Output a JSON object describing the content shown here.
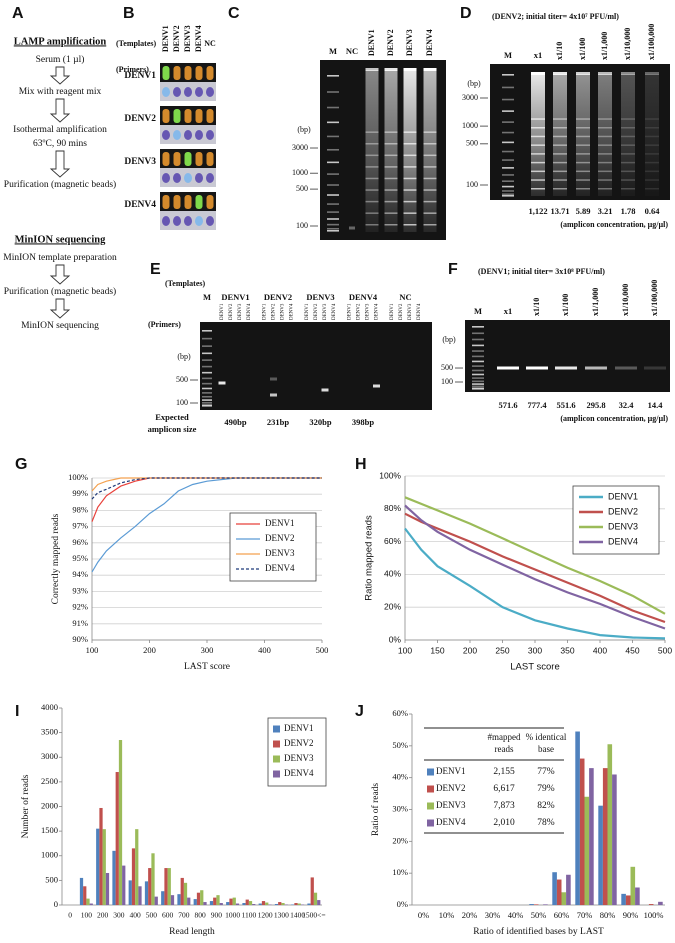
{
  "panels": {
    "A": {
      "label": "A",
      "steps": [
        {
          "lines": [
            "LAMP amplification"
          ],
          "header": true
        },
        {
          "lines": [
            "Serum (1 µl)"
          ]
        },
        {
          "lines": [
            "Mix with reagent mix"
          ]
        },
        {
          "lines": [
            "Isothermal  amplification",
            "63ºC, 90 mins"
          ]
        },
        {
          "lines": [
            "Purification  (magnetic beads)"
          ]
        },
        {
          "lines": [
            "MinION sequencing"
          ],
          "header": true
        },
        {
          "lines": [
            "MinION template preparation"
          ]
        },
        {
          "lines": [
            "Purification  (magnetic beads)"
          ]
        },
        {
          "lines": [
            "MinION sequencing"
          ]
        }
      ]
    },
    "B": {
      "label": "B",
      "templates_title": "(Templates)",
      "templates": [
        "DENV1",
        "DENV2",
        "DENV3",
        "DENV4",
        "NC"
      ],
      "primers_title": "(Primers)",
      "primers": [
        "DENV1",
        "DENV2",
        "DENV3",
        "DENV4"
      ]
    },
    "C": {
      "label": "C",
      "lanes": [
        "M",
        "NC",
        "DENV1",
        "DENV2",
        "DENV3",
        "DENV4"
      ],
      "unit": "(bp)",
      "markers": [
        3000,
        1000,
        500,
        100
      ]
    },
    "D": {
      "label": "D",
      "title": "(DENV2; initial titer= 4x10⁷ PFU/ml)",
      "lanes": [
        "M",
        "x1",
        "x1/10",
        "x1/100",
        "x1/1,000",
        "x1/10,000",
        "x1/100,000"
      ],
      "unit": "(bp)",
      "markers": [
        3000,
        1000,
        500,
        100
      ],
      "concentrations": [
        "1,122",
        "13.71",
        "5.89",
        "3.21",
        "1.78",
        "0.64"
      ],
      "concentration_note": "(amplicon concentration, µg/µl)"
    },
    "E": {
      "label": "E",
      "templates_title": "(Templates)",
      "lanes": [
        "M",
        "DENV1",
        "DENV2",
        "DENV3",
        "DENV4",
        "NC"
      ],
      "primers_title": "(Primers)",
      "lane_primers": [
        "DENV1",
        "DENV2",
        "DENV3",
        "DENV4"
      ],
      "unit": "(bp)",
      "markers": [
        500,
        100
      ],
      "size_title": [
        "Expected",
        "amplicon size"
      ],
      "sizes": [
        "490bp",
        "231bp",
        "320bp",
        "398bp"
      ]
    },
    "F": {
      "label": "F",
      "title": "(DENV1; initial titer= 3x10⁸ PFU/ml)",
      "lanes": [
        "M",
        "x1",
        "x1/10",
        "x1/100",
        "x1/1,000",
        "x1/10,000",
        "x1/100,000"
      ],
      "unit": "(bp)",
      "markers": [
        500,
        100
      ],
      "concentrations": [
        "571.6",
        "777.4",
        "551.6",
        "295.8",
        "32.4",
        "14.4"
      ],
      "concentration_note": "(amplicon concentration, µg/µl)"
    }
  },
  "chart_data": [
    {
      "type": "line",
      "label": "G",
      "x_label": "LAST score",
      "y_label": "Correctly mapped reads",
      "x": [
        100,
        110,
        125,
        150,
        175,
        200,
        225,
        250,
        275,
        300,
        350,
        400,
        500
      ],
      "xlim": [
        100,
        500
      ],
      "xticks": [
        100,
        200,
        300,
        400,
        500
      ],
      "ylim": [
        90,
        100
      ],
      "yticks": [
        {
          "value": 90,
          "label": "90%"
        },
        {
          "value": 91,
          "label": "91%"
        },
        {
          "value": 92,
          "label": "92%"
        },
        {
          "value": 93,
          "label": "93%"
        },
        {
          "value": 94,
          "label": "94%"
        },
        {
          "value": 95,
          "label": "95%"
        },
        {
          "value": 96,
          "label": "96%"
        },
        {
          "value": 97,
          "label": "97%"
        },
        {
          "value": 98,
          "label": "98%"
        },
        {
          "value": 99,
          "label": "99%"
        },
        {
          "value": 100,
          "label": "100%"
        }
      ],
      "grid": true,
      "legend": "center right",
      "series": [
        {
          "name": "DENV1",
          "color": "#e8403a",
          "values": [
            97.3,
            98.2,
            98.9,
            99.5,
            99.8,
            100,
            100,
            100,
            100,
            100,
            100,
            100,
            100
          ]
        },
        {
          "name": "DENV2",
          "color": "#5b9bd5",
          "values": [
            94.2,
            94.8,
            95.5,
            96.3,
            97.0,
            97.8,
            98.4,
            99.2,
            99.6,
            99.8,
            100,
            100,
            100
          ]
        },
        {
          "name": "DENV3",
          "color": "#f4a14f",
          "values": [
            99.2,
            99.6,
            99.8,
            100,
            100,
            100,
            100,
            100,
            100,
            100,
            100,
            100,
            100
          ]
        },
        {
          "name": "DENV4",
          "color": "#1f3a7a",
          "line_style": "dashed",
          "values": [
            98.7,
            99.1,
            99.3,
            99.7,
            99.9,
            100,
            100,
            100,
            100,
            100,
            100,
            100,
            100
          ]
        }
      ]
    },
    {
      "type": "line",
      "label": "H",
      "x_label": "LAST score",
      "y_label": "Ratio mapped reads",
      "x": [
        100,
        125,
        150,
        200,
        250,
        300,
        350,
        400,
        450,
        500
      ],
      "xlim": [
        100,
        500
      ],
      "xticks": [
        100,
        150,
        200,
        250,
        300,
        350,
        400,
        450,
        500
      ],
      "ylim": [
        0,
        100
      ],
      "yticks": [
        {
          "value": 0,
          "label": "0%"
        },
        {
          "value": 20,
          "label": "20%"
        },
        {
          "value": 40,
          "label": "40%"
        },
        {
          "value": 60,
          "label": "60%"
        },
        {
          "value": 80,
          "label": "80%"
        },
        {
          "value": 100,
          "label": "100%"
        }
      ],
      "grid": true,
      "legend": "upper right",
      "series": [
        {
          "name": "DENV1",
          "color": "#4bacc6",
          "values": [
            68,
            55,
            45,
            33,
            20,
            12,
            7,
            3,
            1.5,
            1
          ]
        },
        {
          "name": "DENV2",
          "color": "#c0504d",
          "values": [
            77,
            72,
            68,
            60,
            51,
            43,
            35,
            27,
            18,
            11
          ]
        },
        {
          "name": "DENV3",
          "color": "#9bbb59",
          "values": [
            87,
            83,
            79,
            71,
            62,
            53,
            44,
            36,
            27,
            16
          ]
        },
        {
          "name": "DENV4",
          "color": "#8064a2",
          "values": [
            82,
            73,
            66,
            55,
            46,
            37,
            29,
            22,
            14,
            7
          ]
        }
      ]
    },
    {
      "type": "bar",
      "label": "I",
      "x_label": "Read length",
      "y_label": "Number of reads",
      "categories": [
        "0",
        "100",
        "200",
        "300",
        "400",
        "500",
        "600",
        "700",
        "800",
        "900",
        "1000",
        "1100",
        "1200",
        "1300",
        "1400",
        "1500<="
      ],
      "ylim": [
        0,
        4000
      ],
      "yticks": [
        0,
        500,
        1000,
        1500,
        2000,
        2500,
        3000,
        3500,
        4000
      ],
      "grid": false,
      "legend": "upper right",
      "series": [
        {
          "name": "DENV1",
          "color": "#4f81bd",
          "values": [
            0,
            550,
            1550,
            1100,
            500,
            480,
            280,
            220,
            120,
            80,
            60,
            40,
            30,
            20,
            10,
            30
          ]
        },
        {
          "name": "DENV2",
          "color": "#c0504d",
          "values": [
            0,
            380,
            1970,
            2700,
            1150,
            750,
            750,
            550,
            250,
            150,
            130,
            110,
            80,
            60,
            40,
            560
          ]
        },
        {
          "name": "DENV3",
          "color": "#9bbb59",
          "values": [
            0,
            130,
            1540,
            3350,
            1540,
            1050,
            750,
            450,
            300,
            200,
            150,
            80,
            50,
            40,
            30,
            250
          ]
        },
        {
          "name": "DENV4",
          "color": "#8064a2",
          "values": [
            0,
            30,
            650,
            800,
            380,
            170,
            200,
            150,
            60,
            40,
            30,
            20,
            10,
            10,
            10,
            100
          ]
        }
      ]
    },
    {
      "type": "bar",
      "label": "J",
      "x_label": "Ratio of identified bases by LAST",
      "y_label": "Ratio of reads",
      "categories": [
        "0%",
        "10%",
        "20%",
        "30%",
        "40%",
        "50%",
        "60%",
        "70%",
        "80%",
        "90%",
        "100%"
      ],
      "ylim": [
        0,
        60
      ],
      "yticks": [
        {
          "value": 0,
          "label": "0%"
        },
        {
          "value": 10,
          "label": "10%"
        },
        {
          "value": 20,
          "label": "20%"
        },
        {
          "value": 30,
          "label": "30%"
        },
        {
          "value": 40,
          "label": "40%"
        },
        {
          "value": 50,
          "label": "50%"
        },
        {
          "value": 60,
          "label": "60%"
        }
      ],
      "grid": false,
      "legend": "upper left",
      "table": {
        "columns": [
          [
            "#mapped",
            "reads"
          ],
          [
            "% identical",
            "base"
          ]
        ],
        "rows": [
          [
            "2,155",
            "77%"
          ],
          [
            "6,617",
            "79%"
          ],
          [
            "7,873",
            "82%"
          ],
          [
            "2,010",
            "78%"
          ]
        ]
      },
      "series": [
        {
          "name": "DENV1",
          "color": "#4f81bd",
          "values": [
            0,
            0,
            0,
            0,
            0,
            0.3,
            10.3,
            54.5,
            31.2,
            3.5,
            0
          ]
        },
        {
          "name": "DENV2",
          "color": "#c0504d",
          "values": [
            0,
            0,
            0,
            0,
            0,
            0.2,
            8,
            46,
            43,
            3,
            0.3
          ]
        },
        {
          "name": "DENV3",
          "color": "#9bbb59",
          "values": [
            0,
            0,
            0,
            0,
            0,
            0,
            4,
            34,
            50.5,
            12,
            0
          ]
        },
        {
          "name": "DENV4",
          "color": "#8064a2",
          "values": [
            0,
            0,
            0,
            0,
            0,
            0.2,
            9.5,
            43,
            41,
            5.5,
            1
          ]
        }
      ]
    }
  ]
}
